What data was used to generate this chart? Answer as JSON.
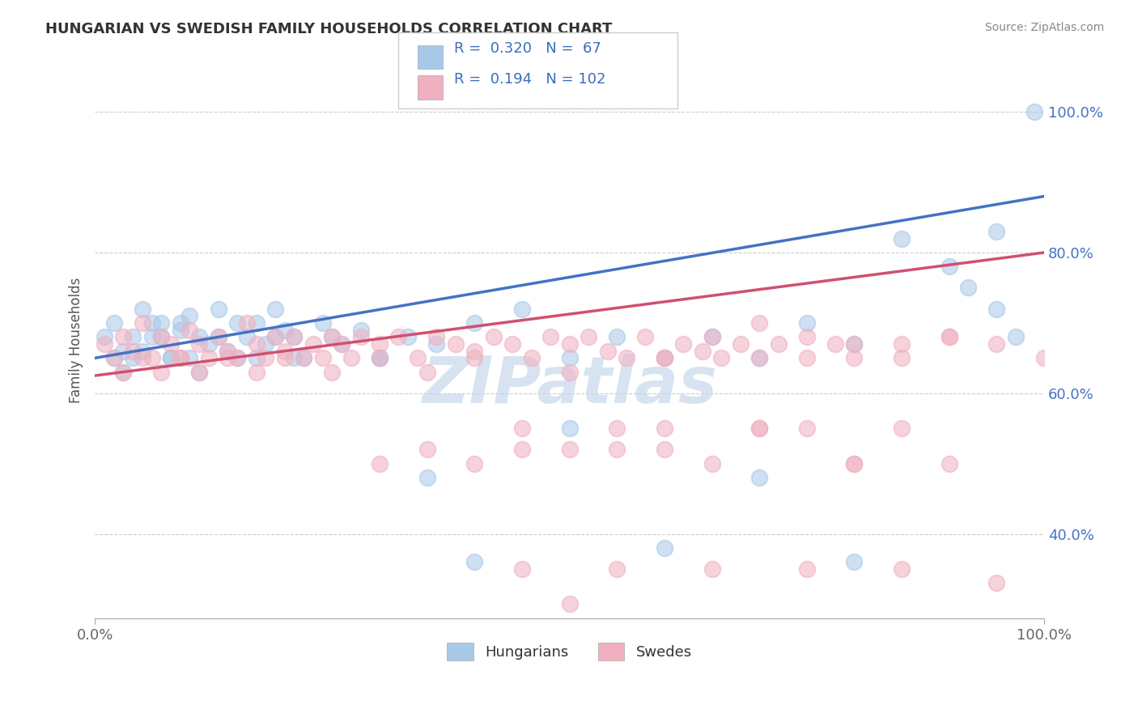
{
  "title": "HUNGARIAN VS SWEDISH FAMILY HOUSEHOLDS CORRELATION CHART",
  "source": "Source: ZipAtlas.com",
  "ylabel": "Family Households",
  "hungarian_R": 0.32,
  "hungarian_N": 67,
  "swedish_R": 0.194,
  "swedish_N": 102,
  "blue_color": "#a8c8e8",
  "pink_color": "#f0b0c0",
  "blue_line": "#4472c4",
  "pink_line": "#d05070",
  "legend_text_color": "#3b6dbf",
  "bg_color": "#ffffff",
  "grid_color": "#cccccc",
  "ytick_color": "#4472c4",
  "xtick_color": "#666666",
  "title_color": "#333333",
  "source_color": "#888888",
  "watermark_color": "#c8d8ec",
  "hun_line_start_y": 65.0,
  "hun_line_end_y": 88.0,
  "swe_line_start_y": 62.5,
  "swe_line_end_y": 80.0,
  "xlim": [
    0,
    100
  ],
  "ylim": [
    28,
    107
  ],
  "yticks_vals": [
    40,
    60,
    80,
    100
  ],
  "yticks_labels": [
    "40.0%",
    "60.0%",
    "80.0%",
    "100.0%"
  ],
  "hun_x": [
    1,
    2,
    3,
    4,
    5,
    6,
    7,
    8,
    9,
    10,
    11,
    12,
    13,
    14,
    15,
    16,
    17,
    18,
    19,
    20,
    21,
    22,
    24,
    26,
    28,
    30,
    33,
    36,
    40,
    45,
    50,
    55,
    60,
    65,
    70,
    75,
    80,
    85,
    90,
    92,
    95,
    97,
    99,
    2,
    3,
    4,
    5,
    6,
    7,
    8,
    9,
    10,
    11,
    13,
    15,
    17,
    19,
    21,
    25,
    30,
    35,
    40,
    50,
    60,
    70,
    80,
    95
  ],
  "hun_y": [
    68,
    70,
    66,
    65,
    72,
    68,
    70,
    65,
    69,
    71,
    68,
    67,
    72,
    66,
    70,
    68,
    65,
    67,
    72,
    69,
    68,
    65,
    70,
    67,
    69,
    65,
    68,
    67,
    70,
    72,
    65,
    68,
    65,
    68,
    65,
    70,
    67,
    82,
    78,
    75,
    72,
    68,
    100,
    65,
    63,
    68,
    66,
    70,
    68,
    65,
    70,
    65,
    63,
    68,
    65,
    70,
    68,
    65,
    68,
    65,
    48,
    36,
    55,
    38,
    48,
    36,
    83
  ],
  "swe_x": [
    1,
    2,
    3,
    4,
    5,
    6,
    7,
    8,
    9,
    10,
    11,
    12,
    13,
    14,
    15,
    16,
    17,
    18,
    19,
    20,
    21,
    22,
    23,
    24,
    25,
    26,
    27,
    28,
    30,
    32,
    34,
    36,
    38,
    40,
    42,
    44,
    46,
    48,
    50,
    52,
    54,
    56,
    58,
    60,
    62,
    64,
    66,
    68,
    70,
    72,
    75,
    78,
    80,
    85,
    90,
    95,
    100,
    3,
    5,
    7,
    9,
    11,
    14,
    17,
    20,
    25,
    30,
    35,
    40,
    50,
    60,
    65,
    70,
    75,
    80,
    85,
    90,
    60,
    70,
    80,
    90,
    55,
    45,
    40,
    35,
    30,
    50,
    65,
    55,
    45,
    60,
    70,
    75,
    80,
    85,
    45,
    55,
    65,
    75,
    85,
    95,
    50
  ],
  "swe_y": [
    67,
    65,
    68,
    66,
    70,
    65,
    68,
    67,
    65,
    69,
    67,
    65,
    68,
    66,
    65,
    70,
    67,
    65,
    68,
    66,
    68,
    65,
    67,
    65,
    68,
    67,
    65,
    68,
    67,
    68,
    65,
    68,
    67,
    66,
    68,
    67,
    65,
    68,
    67,
    68,
    66,
    65,
    68,
    65,
    67,
    66,
    65,
    67,
    65,
    67,
    65,
    67,
    65,
    67,
    68,
    67,
    65,
    63,
    65,
    63,
    65,
    63,
    65,
    63,
    65,
    63,
    65,
    63,
    65,
    63,
    65,
    68,
    70,
    68,
    67,
    65,
    68,
    55,
    55,
    50,
    50,
    52,
    52,
    50,
    52,
    50,
    52,
    50,
    55,
    55,
    52,
    55,
    55,
    50,
    55,
    35,
    35,
    35,
    35,
    35,
    33,
    30
  ]
}
